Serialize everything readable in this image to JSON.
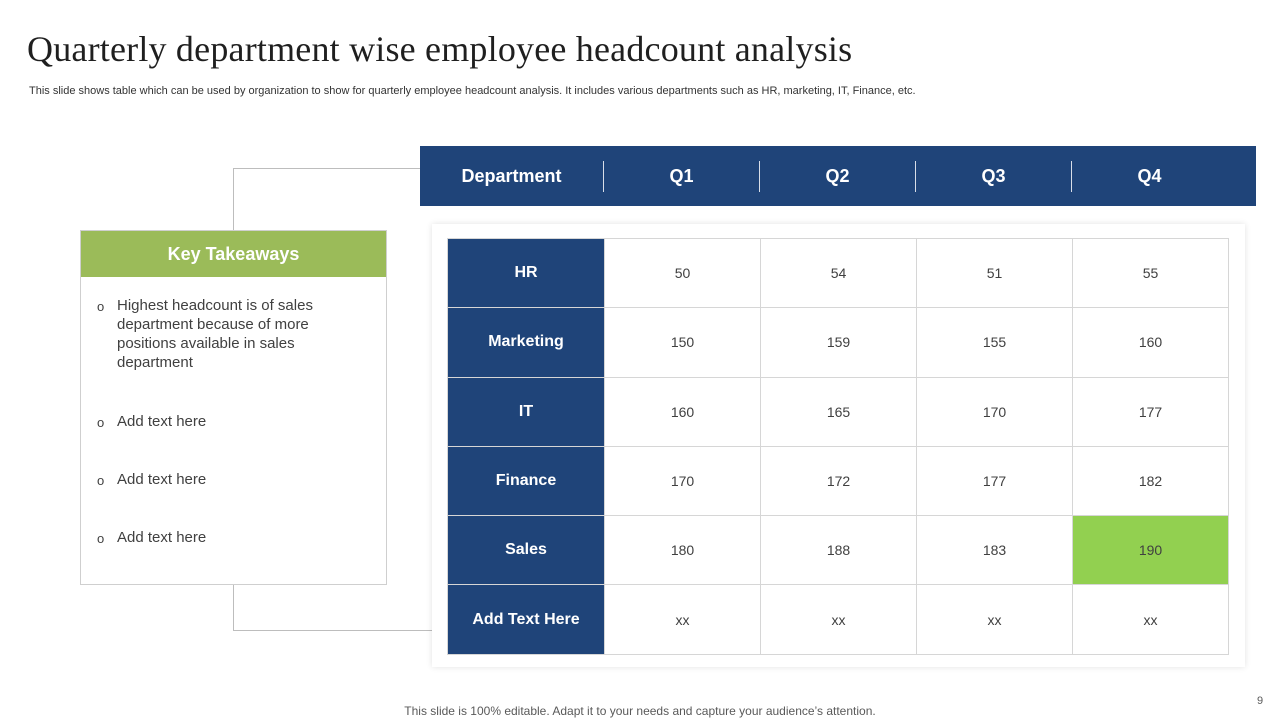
{
  "slide": {
    "title": "Quarterly department wise employee headcount analysis",
    "subtitle": "This slide shows table which can be used by organization to show for quarterly employee headcount analysis. It includes various departments such as HR, marketing, IT, Finance, etc.",
    "footer": "This slide is 100% editable. Adapt it to your needs and capture your audience’s attention.",
    "page_number": "9"
  },
  "takeaways": {
    "header": "Key Takeaways",
    "bullet_glyph": "o",
    "items": [
      "Highest headcount is of sales department because of more positions available in sales department",
      "Add text here",
      "Add text here",
      "Add text here"
    ]
  },
  "table": {
    "headers": [
      "Department",
      "Q1",
      "Q2",
      "Q3",
      "Q4"
    ],
    "rows": [
      {
        "department": "HR",
        "values": [
          "50",
          "54",
          "51",
          "55"
        ]
      },
      {
        "department": "Marketing",
        "values": [
          "150",
          "159",
          "155",
          "160"
        ]
      },
      {
        "department": "IT",
        "values": [
          "160",
          "165",
          "170",
          "177"
        ]
      },
      {
        "department": "Finance",
        "values": [
          "170",
          "172",
          "177",
          "182"
        ]
      },
      {
        "department": "Sales",
        "values": [
          "180",
          "188",
          "183",
          "190"
        ]
      },
      {
        "department": "Add Text Here",
        "values": [
          "xx",
          "xx",
          "xx",
          "xx"
        ]
      }
    ],
    "highlight": {
      "row": "Sales",
      "column": "Q4",
      "color": "#92d050"
    }
  },
  "colors": {
    "header_blue": "#1f4479",
    "takeaway_green": "#9bbb59",
    "highlight_green": "#92d050"
  }
}
